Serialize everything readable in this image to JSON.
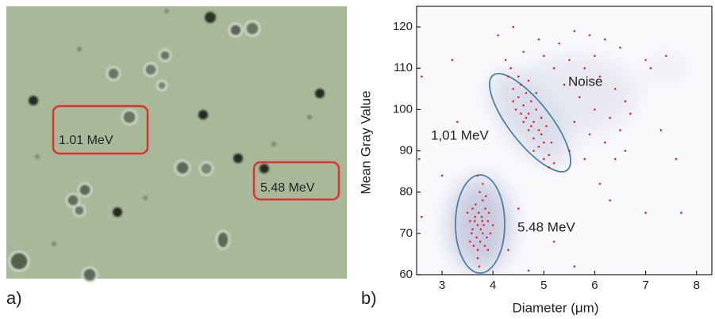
{
  "micrograph": {
    "labels": [
      "1.01 MeV",
      "5.48 MeV"
    ],
    "panel_label": "a)"
  },
  "chart_data": {
    "type": "scatter",
    "panel_label": "b)",
    "xlabel": "Diameter (μm)",
    "ylabel": "Mean Gray Value",
    "annotations": [
      "Noise",
      "1,01 MeV",
      "5.48 MeV"
    ],
    "color": "#e8202a",
    "xlim": [
      2.5,
      8.3
    ],
    "ylim": [
      60,
      125
    ],
    "xticks": [
      3,
      4,
      5,
      6,
      7,
      8
    ],
    "yticks": [
      60,
      70,
      80,
      90,
      100,
      110,
      120
    ],
    "x": [
      3.7,
      3.8,
      3.65,
      3.75,
      3.9,
      3.6,
      3.85,
      3.7,
      3.8,
      3.55,
      3.95,
      3.72,
      3.68,
      3.82,
      3.78,
      3.62,
      3.88,
      3.74,
      3.66,
      3.92,
      3.58,
      3.7,
      3.84,
      3.76,
      3.64,
      3.8,
      3.5,
      4.0,
      3.86,
      3.6,
      3.73,
      3.9,
      3.7,
      3.55,
      3.79,
      4.3,
      4.4,
      4.5,
      4.6,
      4.7,
      4.8,
      4.9,
      5.0,
      5.1,
      5.2,
      4.35,
      4.55,
      4.65,
      4.75,
      4.85,
      4.95,
      5.05,
      4.45,
      4.6,
      4.7,
      4.8,
      4.9,
      5.0,
      4.25,
      4.5,
      4.65,
      4.75,
      4.85,
      4.95,
      5.15,
      4.4,
      4.55,
      4.8,
      5.1,
      4.7,
      4.1,
      4.4,
      4.9,
      5.3,
      5.6,
      5.9,
      6.2,
      6.5,
      5.5,
      5.8,
      6.1,
      6.4,
      6.6,
      5.4,
      5.7,
      6.0,
      6.3,
      6.5,
      5.6,
      5.9,
      6.2,
      6.6,
      5.5,
      5.8,
      6.4,
      6.7,
      5.2,
      4.6,
      5.0,
      6.0,
      7.1,
      7.4,
      7.0,
      2.6,
      2.55,
      2.6,
      3.2,
      3.3,
      3.0,
      4.3,
      5.2,
      5.6,
      6.1,
      6.3,
      7.0,
      7.7,
      7.6,
      7.3,
      4.5,
      4.7
    ],
    "values": [
      72,
      70,
      74,
      68,
      73,
      71,
      76,
      66,
      78,
      73,
      70,
      75,
      69,
      72,
      74,
      67,
      69,
      80,
      77,
      75,
      70,
      64,
      67,
      71,
      73,
      82,
      75,
      72,
      79,
      76,
      62,
      66,
      84,
      68,
      73,
      108,
      105,
      103,
      101,
      99,
      97,
      95,
      92,
      89,
      87,
      110,
      106,
      104,
      102,
      100,
      98,
      96,
      100,
      97,
      95,
      93,
      91,
      88,
      112,
      108,
      98,
      96,
      104,
      94,
      92,
      102,
      99,
      90,
      86,
      107,
      118,
      120,
      117,
      116,
      119,
      118,
      117,
      115,
      112,
      110,
      108,
      105,
      102,
      106,
      103,
      100,
      98,
      95,
      97,
      94,
      92,
      90,
      90,
      88,
      88,
      99,
      110,
      114,
      113,
      113,
      110,
      113,
      112,
      108,
      88,
      74,
      112,
      97,
      84,
      66,
      68,
      62,
      82,
      78,
      75,
      75,
      88,
      95,
      76,
      61
    ]
  }
}
